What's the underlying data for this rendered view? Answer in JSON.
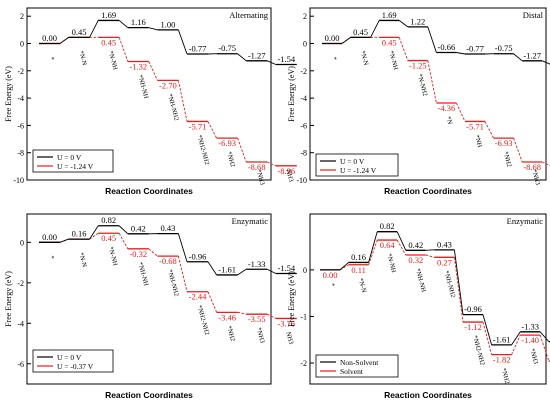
{
  "panels": [
    {
      "corner_label": "Alternating",
      "xlabel": "Reaction Coordinates",
      "ylabel": "Free Energy (eV)",
      "legend": [
        "U = 0 V",
        "U = -1.24 V"
      ],
      "chart_data": {
        "type": "line",
        "ylim": [
          -10,
          2.6
        ],
        "yticks": [
          -10,
          -8,
          -6,
          -4,
          -2,
          0,
          2
        ],
        "intermediates": [
          "*",
          "*N-N",
          "*N-NH",
          "*NH-NH",
          "*NH-NH2",
          "*NH2-NH2",
          "*NH2",
          "*NH3",
          "NH3"
        ],
        "series": [
          {
            "name": "U = 0 V",
            "color": "#000000",
            "values": [
              0.0,
              0.45,
              1.69,
              1.16,
              1.0,
              -0.77,
              -0.75,
              -1.27,
              -1.54
            ],
            "labels": [
              "0.00",
              "0.45",
              "1.69",
              "1.16",
              "1.00",
              "-0.77",
              "-0.75",
              "-1.27",
              "-1.54"
            ]
          },
          {
            "name": "U = -1.24 V",
            "color": "#ee1c1c",
            "values": [
              0.0,
              0.45,
              0.45,
              -1.32,
              -2.7,
              -5.71,
              -6.93,
              -8.68,
              -8.96
            ],
            "labels": [
              "",
              "",
              "0.45",
              "-1.32",
              "-2.70",
              "-5.71",
              "-6.93",
              "-8.68",
              "-8.96"
            ]
          }
        ]
      }
    },
    {
      "corner_label": "Distal",
      "xlabel": "Reaction Coordinates",
      "ylabel": "Free Energy (eV)",
      "legend": [
        "U = 0 V",
        "U = -1.24 V"
      ],
      "chart_data": {
        "type": "line",
        "ylim": [
          -10,
          2.6
        ],
        "yticks": [
          -10,
          -8,
          -6,
          -4,
          -2,
          0,
          2
        ],
        "intermediates": [
          "*",
          "*N-N",
          "*N-NH",
          "*N-NH2",
          "*N",
          "*NH",
          "*NH2",
          "*NH3",
          "NH3"
        ],
        "series": [
          {
            "name": "U = 0 V",
            "color": "#000000",
            "values": [
              0.0,
              0.45,
              1.69,
              1.22,
              -0.66,
              -0.77,
              -0.75,
              -1.27,
              -1.54
            ],
            "labels": [
              "0.00",
              "0.45",
              "1.69",
              "1.22",
              "-0.66",
              "-0.77",
              "-0.75",
              "-1.27",
              "-1.54"
            ]
          },
          {
            "name": "U = -1.24 V",
            "color": "#ee1c1c",
            "values": [
              0.0,
              0.45,
              0.45,
              -1.25,
              -4.36,
              -5.71,
              -6.93,
              -8.68,
              -8.96
            ],
            "labels": [
              "",
              "",
              "0.45",
              "-1.25",
              "-4.36",
              "-5.71",
              "-6.93",
              "-8.68",
              "-8.96"
            ]
          }
        ]
      }
    },
    {
      "corner_label": "Enzymatic",
      "xlabel": "Reaction Coordinates",
      "ylabel": "Free Energy (eV)",
      "legend": [
        "U = 0 V",
        "U = -0.37 V"
      ],
      "chart_data": {
        "type": "line",
        "ylim": [
          -7,
          1.4
        ],
        "yticks": [
          -6,
          -4,
          -2,
          0
        ],
        "intermediates": [
          "*",
          "*N-N",
          "*N-NH",
          "*NH-NH",
          "*NH-NH2",
          "*NH2-NH2",
          "*NH2",
          "*NH3",
          "NH3"
        ],
        "series": [
          {
            "name": "U = 0 V",
            "color": "#000000",
            "values": [
              0.0,
              0.16,
              0.82,
              0.42,
              0.43,
              -0.96,
              -1.61,
              -1.33,
              -1.54
            ],
            "labels": [
              "0.00",
              "0.16",
              "0.82",
              "0.42",
              "0.43",
              "-0.96",
              "-1.61",
              "-1.33",
              "-1.54"
            ]
          },
          {
            "name": "U = -0.37 V",
            "color": "#ee1c1c",
            "values": [
              0.0,
              0.16,
              0.45,
              -0.32,
              -0.68,
              -2.44,
              -3.46,
              -3.55,
              -3.76
            ],
            "labels": [
              "",
              "",
              "0.45",
              "-0.32",
              "-0.68",
              "-2.44",
              "-3.46",
              "-3.55",
              "-3.76"
            ]
          }
        ]
      }
    },
    {
      "corner_label": "Enzymatic",
      "xlabel": "Reaction Coordinates",
      "ylabel": "Free Energy (eV)",
      "legend": [
        "Non-Solvent",
        "Solvent"
      ],
      "chart_data": {
        "type": "line",
        "ylim": [
          -2.45,
          1.2
        ],
        "yticks": [
          -2,
          -1,
          0
        ],
        "intermediates": [
          "*",
          "*N-N",
          "*N-NH",
          "*NH-NH",
          "*NH-NH2",
          "*NH2-NH2",
          "*NH2",
          "*NH3",
          "NH3(g)"
        ],
        "series": [
          {
            "name": "Non-Solvent",
            "color": "#000000",
            "values": [
              0.0,
              0.16,
              0.82,
              0.42,
              0.43,
              -0.96,
              -1.61,
              -1.33,
              -1.54
            ],
            "labels": [
              "",
              "0.16",
              "0.82",
              "0.42",
              "0.43",
              "-0.96",
              "-1.61",
              "-1.33",
              "-1.54"
            ]
          },
          {
            "name": "Solvent",
            "color": "#ee1c1c",
            "values": [
              0.0,
              0.11,
              0.64,
              0.32,
              0.27,
              -1.12,
              -1.82,
              -1.4,
              -1.96
            ],
            "labels": [
              "0.00",
              "0.11",
              "0.64",
              "0.32",
              "0.27",
              "-1.12",
              "-1.82",
              "-1.40",
              "-1.96"
            ]
          }
        ]
      }
    }
  ]
}
